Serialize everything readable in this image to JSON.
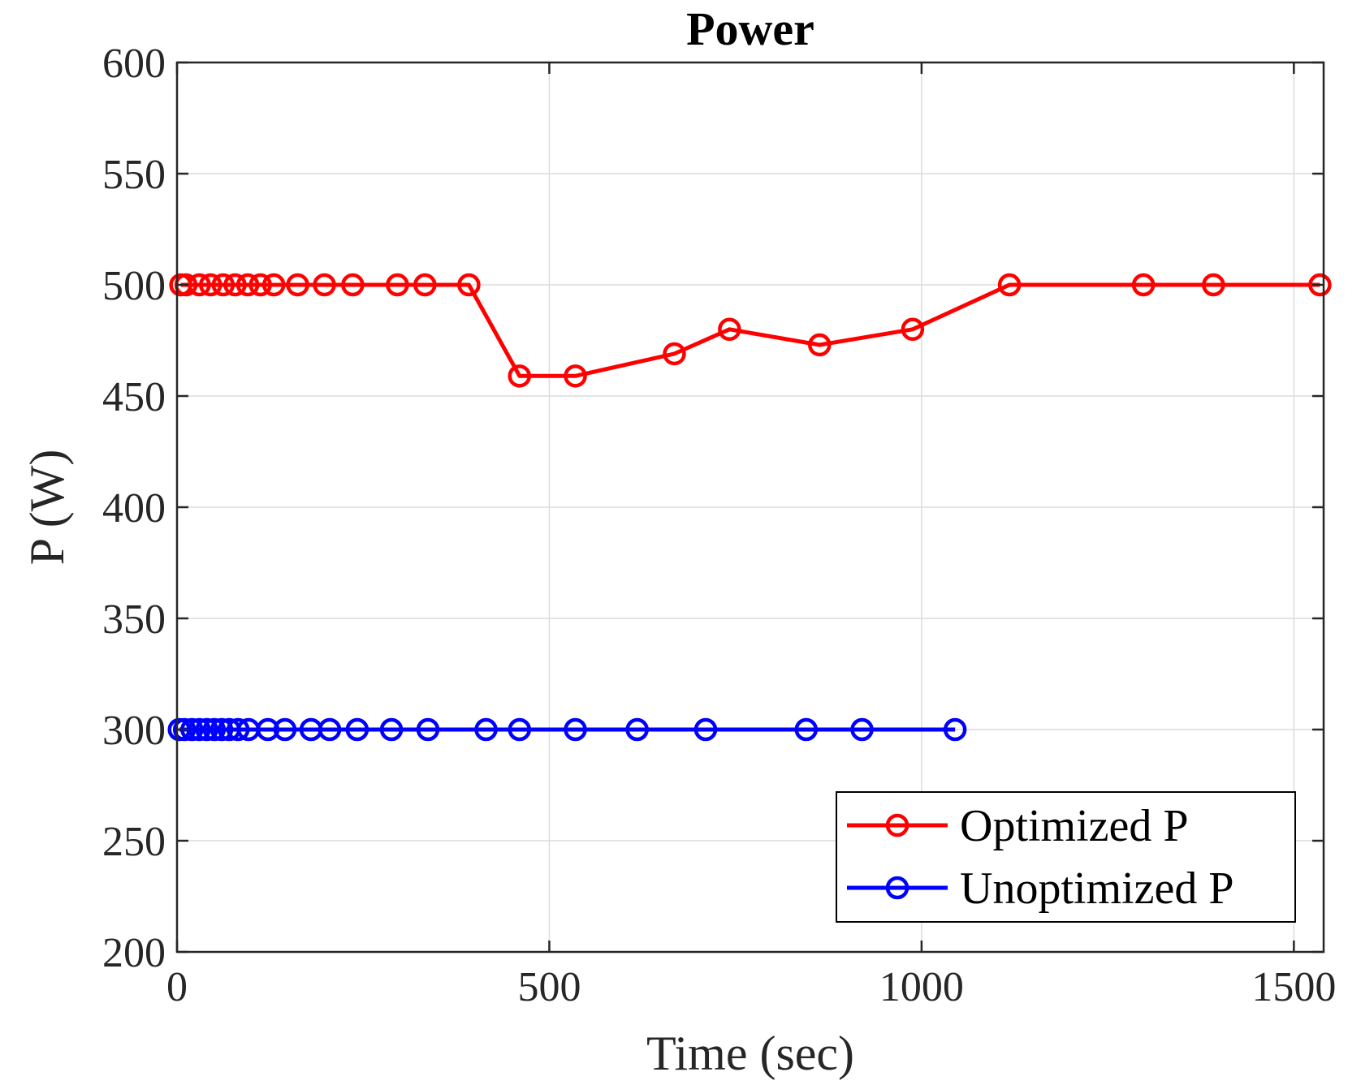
{
  "chart_data": {
    "type": "line",
    "title": "Power",
    "xlabel": "Time (sec)",
    "ylabel": "P (W)",
    "xlim": [
      0,
      1540
    ],
    "ylim": [
      200,
      600
    ],
    "xticks": [
      0,
      500,
      1000,
      1500
    ],
    "yticks": [
      200,
      250,
      300,
      350,
      400,
      450,
      500,
      550,
      600
    ],
    "grid": true,
    "legend_position": "bottom-right",
    "series": [
      {
        "name": "Optimized P",
        "color": "#ff0000",
        "marker": "circle",
        "x": [
          5,
          12,
          30,
          45,
          62,
          78,
          95,
          112,
          130,
          162,
          198,
          236,
          296,
          333,
          392,
          460,
          535,
          668,
          742,
          863,
          988,
          1118,
          1298,
          1392,
          1535
        ],
        "y": [
          500,
          500,
          500,
          500,
          500,
          500,
          500,
          500,
          500,
          500,
          500,
          500,
          500,
          500,
          500,
          459,
          459,
          469,
          480,
          473,
          480,
          500,
          500,
          500,
          500
        ]
      },
      {
        "name": "Unoptimized P",
        "color": "#0000ff",
        "marker": "circle",
        "x": [
          3,
          10,
          20,
          30,
          40,
          50,
          60,
          70,
          82,
          96,
          122,
          145,
          180,
          205,
          242,
          288,
          337,
          415,
          460,
          535,
          618,
          710,
          845,
          920,
          1045
        ],
        "y": [
          300,
          300,
          300,
          300,
          300,
          300,
          300,
          300,
          300,
          300,
          300,
          300,
          300,
          300,
          300,
          300,
          300,
          300,
          300,
          300,
          300,
          300,
          300,
          300,
          300
        ]
      }
    ]
  }
}
